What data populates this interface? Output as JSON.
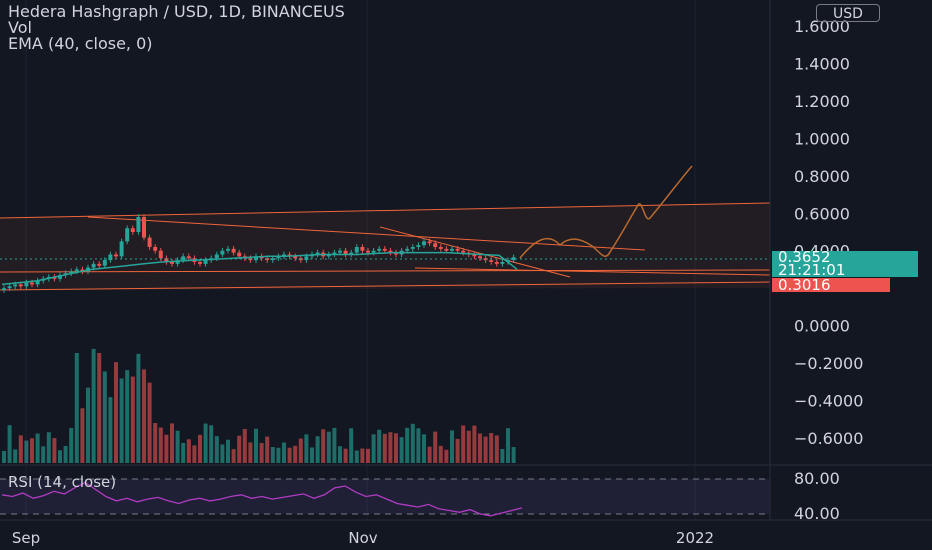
{
  "header": {
    "title": "Hedera Hashgraph / USD, 1D, BINANCEUS",
    "vol_label": "Vol",
    "ema_label": "EMA (40, close, 0)"
  },
  "currency_button": "USD",
  "price_axis": [
    "1.6000",
    "1.4000",
    "1.2000",
    "1.0000",
    "0.8000",
    "0.6000",
    "0.4000",
    "0.0000",
    "−0.2000",
    "−0.4000",
    "−0.6000"
  ],
  "price_axis_values": [
    1.6,
    1.4,
    1.2,
    1.0,
    0.8,
    0.6,
    0.4,
    0.0,
    -0.2,
    -0.4,
    -0.6
  ],
  "last_price": {
    "value": "0.3652",
    "countdown": "21:21:01",
    "color": "#26a69a"
  },
  "ema_price": {
    "value": "0.3016",
    "color": "#ef5350"
  },
  "rsi": {
    "label": "RSI (14, close)",
    "axis": [
      "80.00",
      "40.00"
    ],
    "axis_values": [
      80,
      40
    ],
    "line_color": "#b03cc4"
  },
  "time_axis": [
    "Sep",
    "Nov",
    "2022"
  ],
  "colors": {
    "up": "#26a69a",
    "down": "#ef5350",
    "drawing": "#f0653a",
    "projection": "#b86a2f"
  },
  "chart_data": {
    "type": "candlestick",
    "symbol": "Hedera Hashgraph / USD",
    "interval": "1D",
    "y_range": [
      -0.72,
      1.66
    ],
    "ohlc_close_approx": [
      0.2,
      0.21,
      0.22,
      0.21,
      0.23,
      0.22,
      0.24,
      0.25,
      0.26,
      0.25,
      0.27,
      0.28,
      0.29,
      0.3,
      0.29,
      0.31,
      0.33,
      0.32,
      0.35,
      0.38,
      0.37,
      0.45,
      0.52,
      0.5,
      0.58,
      0.47,
      0.42,
      0.4,
      0.36,
      0.34,
      0.33,
      0.35,
      0.37,
      0.36,
      0.34,
      0.33,
      0.35,
      0.36,
      0.38,
      0.4,
      0.41,
      0.39,
      0.37,
      0.36,
      0.35,
      0.37,
      0.36,
      0.35,
      0.36,
      0.37,
      0.38,
      0.37,
      0.36,
      0.35,
      0.37,
      0.38,
      0.39,
      0.37,
      0.38,
      0.39,
      0.4,
      0.38,
      0.39,
      0.42,
      0.4,
      0.39,
      0.4,
      0.41,
      0.4,
      0.39,
      0.38,
      0.4,
      0.41,
      0.42,
      0.43,
      0.45,
      0.44,
      0.42,
      0.41,
      0.4,
      0.41,
      0.4,
      0.39,
      0.38,
      0.37,
      0.36,
      0.35,
      0.34,
      0.33,
      0.34,
      0.35,
      0.3652
    ],
    "ema_approx": [
      0.22,
      0.23,
      0.24,
      0.26,
      0.28,
      0.3,
      0.31,
      0.32,
      0.33,
      0.34,
      0.345,
      0.35,
      0.355,
      0.36,
      0.365,
      0.37,
      0.37,
      0.375,
      0.38,
      0.38,
      0.38,
      0.385,
      0.39,
      0.39,
      0.39,
      0.39,
      0.385,
      0.38,
      0.375,
      0.3016
    ],
    "rsi_approx": [
      62,
      60,
      64,
      58,
      61,
      66,
      63,
      70,
      76,
      68,
      60,
      55,
      58,
      54,
      57,
      59,
      55,
      52,
      56,
      58,
      55,
      57,
      60,
      62,
      58,
      60,
      57,
      59,
      61,
      63,
      58,
      62,
      70,
      72,
      65,
      60,
      62,
      57,
      52,
      50,
      48,
      51,
      46,
      44,
      42,
      45,
      40,
      38,
      41,
      44,
      47
    ]
  }
}
